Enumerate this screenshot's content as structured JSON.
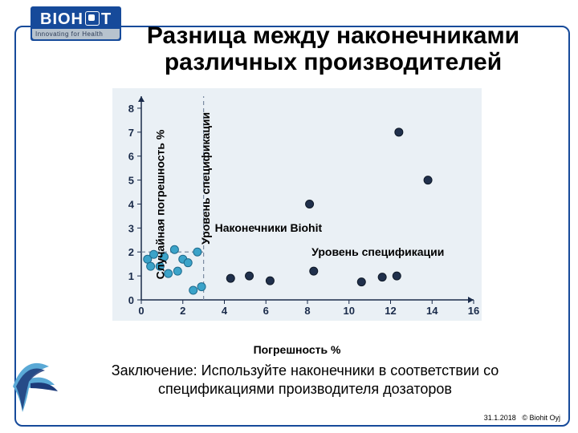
{
  "logo": {
    "brand": "BIOHIT",
    "brand_pre": "BIOH",
    "brand_post": "T",
    "tagline": "Innovating for Health"
  },
  "title_line1": "Разница между наконечниками",
  "title_line2": "различных производителей",
  "chart": {
    "type": "scatter",
    "xlim": [
      0,
      16
    ],
    "ylim": [
      0,
      8.5
    ],
    "xticks": [
      0,
      2,
      4,
      6,
      8,
      10,
      12,
      14,
      16
    ],
    "yticks": [
      0,
      1,
      2,
      3,
      4,
      5,
      6,
      7,
      8
    ],
    "background_color": "#eaf0f5",
    "axis_color": "#1a2b4a",
    "tick_color": "#1a2b4a",
    "tick_fontsize": 13,
    "ref_line_color": "#7a8aa0",
    "ref_x": 3,
    "ref_y": 2,
    "series": {
      "biohit": {
        "label": "Наконечники Biohit",
        "marker_color": "#3ba3c9",
        "marker_stroke": "#1e6a8c",
        "marker_size": 10,
        "points": [
          [
            0.3,
            1.7
          ],
          [
            0.45,
            1.4
          ],
          [
            0.6,
            1.9
          ],
          [
            0.9,
            1.4
          ],
          [
            1.1,
            1.8
          ],
          [
            1.3,
            1.1
          ],
          [
            1.6,
            2.1
          ],
          [
            1.75,
            1.2
          ],
          [
            2.0,
            1.7
          ],
          [
            2.25,
            1.55
          ],
          [
            2.5,
            0.4
          ],
          [
            2.7,
            2.0
          ],
          [
            2.9,
            0.55
          ]
        ]
      },
      "other": {
        "marker_color": "#20304c",
        "marker_stroke": "#0e1826",
        "marker_size": 10,
        "points": [
          [
            4.3,
            0.9
          ],
          [
            5.2,
            1.0
          ],
          [
            6.2,
            0.8
          ],
          [
            8.3,
            1.2
          ],
          [
            8.1,
            4.0
          ],
          [
            10.6,
            0.75
          ],
          [
            11.6,
            0.95
          ],
          [
            12.3,
            1.0
          ],
          [
            12.4,
            7.0
          ],
          [
            13.8,
            5.0
          ]
        ]
      }
    },
    "ylabel": "Случайная погрешность %",
    "ylabel2": "Уровень спецификации",
    "xlabel": "Погрешность %",
    "annotation_spec": "Уровень спецификации"
  },
  "conclusion": "Заключение: Используйте наконечники в соответствии со спецификациями производителя дозаторов",
  "footer_date": "31.1.2018",
  "footer_copyright": "© Biohit Oyj",
  "colors": {
    "frame": "#164a9a",
    "bird1": "#5aa9d6",
    "bird2": "#1d3b7a"
  }
}
